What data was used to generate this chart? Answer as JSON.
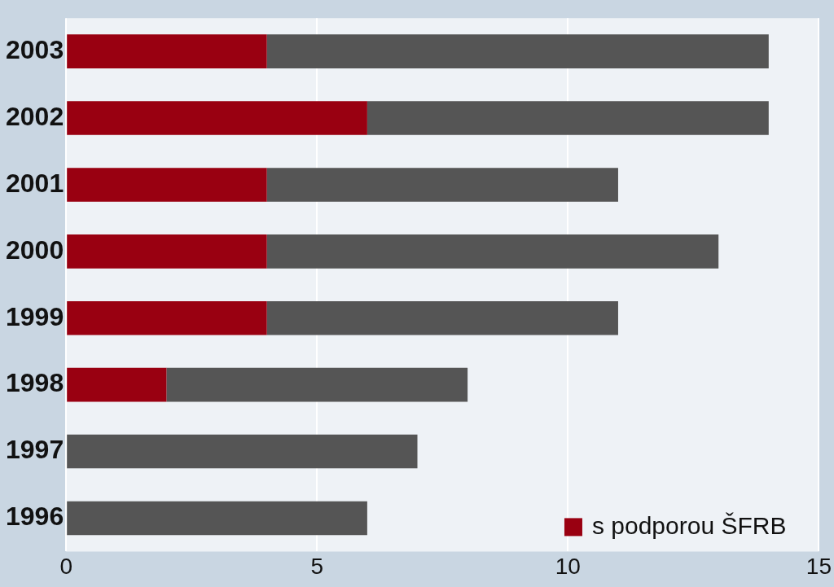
{
  "chart_data": {
    "type": "bar",
    "orientation": "horizontal",
    "stacked": true,
    "categories": [
      "2003",
      "2002",
      "2001",
      "2000",
      "1999",
      "1998",
      "1997",
      "1996"
    ],
    "series": [
      {
        "name": "s podporou ŠFRB",
        "color": "#990011",
        "values": [
          4,
          6,
          4,
          4,
          4,
          2,
          0,
          0
        ]
      },
      {
        "color": "#555555",
        "values": [
          10,
          8,
          7,
          9,
          7,
          6,
          7,
          6
        ]
      }
    ],
    "xlim": [
      0,
      15
    ],
    "xticks": [
      0,
      5,
      10,
      15
    ],
    "grid": "x",
    "legend": "bottom right"
  }
}
